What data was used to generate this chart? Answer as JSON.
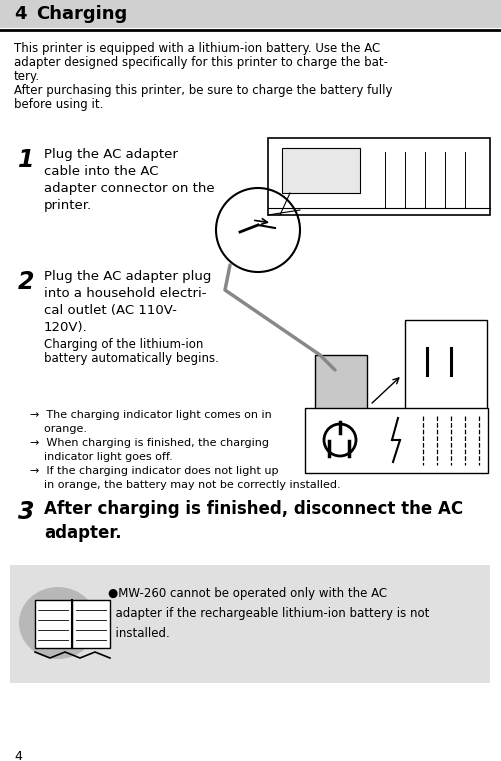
{
  "title_prefix": "4",
  "title": "Charging",
  "bg_color": "#ffffff",
  "title_bg": "#d0d0d0",
  "note_bg": "#e0e0e0",
  "text_color": "#000000",
  "page_number": "4",
  "intro_lines": [
    "This printer is equipped with a lithium-ion battery. Use the AC",
    "adapter designed specifically for this printer to charge the bat-",
    "tery.",
    "After purchasing this printer, be sure to charge the battery fully",
    "before using it."
  ],
  "step1_num": "1",
  "step1_lines": [
    "Plug the AC adapter",
    "cable into the AC",
    "adapter connector on the",
    "printer."
  ],
  "step2_num": "2",
  "step2_lines": [
    "Plug the AC adapter plug",
    "into a household electri-",
    "cal outlet (AC 110V-",
    "120V)."
  ],
  "step2_sub": [
    "Charging of the lithium-ion",
    "battery automatically begins."
  ],
  "arrow_items": [
    "→  The charging indicator light comes on in",
    "    orange.",
    "→  When charging is finished, the charging",
    "    indicator light goes off.",
    "→  If the charging indicator does not light up",
    "    in orange, the battery may not be correctly installed."
  ],
  "step3_num": "3",
  "step3_lines": [
    "After charging is finished, disconnect the AC",
    "adapter."
  ],
  "note_lines": [
    "●MW-260 cannot be operated only with the AC",
    "  adapter if the rechargeable lithium-ion battery is not",
    "  installed."
  ]
}
